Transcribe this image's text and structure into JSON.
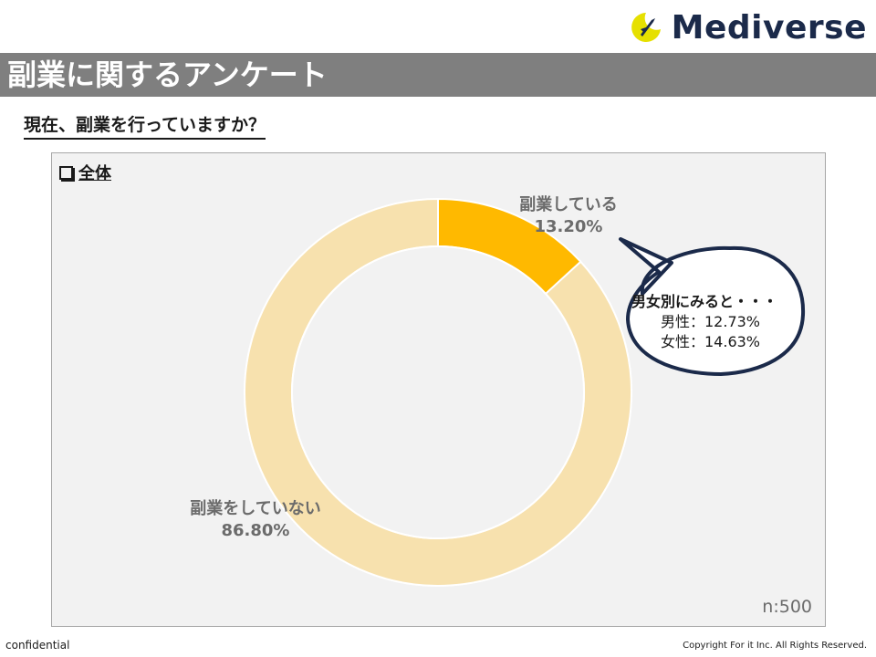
{
  "brand": {
    "name": "Mediverse",
    "mark_icon": "rocket-moon-icon",
    "mark_color": "#e6e000",
    "text_color": "#1b2a4a"
  },
  "header": {
    "title": "副業に関するアンケート"
  },
  "question": "現在、副業を行っていますか？",
  "panel": {
    "title": "全体",
    "sample_size": "n:500"
  },
  "callout": {
    "heading": "男女別にみると・・・",
    "lines": [
      "男性：12.73%",
      "女性：14.63%"
    ]
  },
  "chart_data": {
    "type": "pie",
    "variant": "donut",
    "slices": [
      {
        "label": "副業している",
        "value": 13.2,
        "display": "13.20%",
        "color": "#ffb900"
      },
      {
        "label": "副業をしていない",
        "value": 86.8,
        "display": "86.80%",
        "color": "#f7e1ae"
      }
    ]
  },
  "footer": {
    "left": "confidential",
    "right": "Copyright For it Inc. All Rights Reserved."
  }
}
